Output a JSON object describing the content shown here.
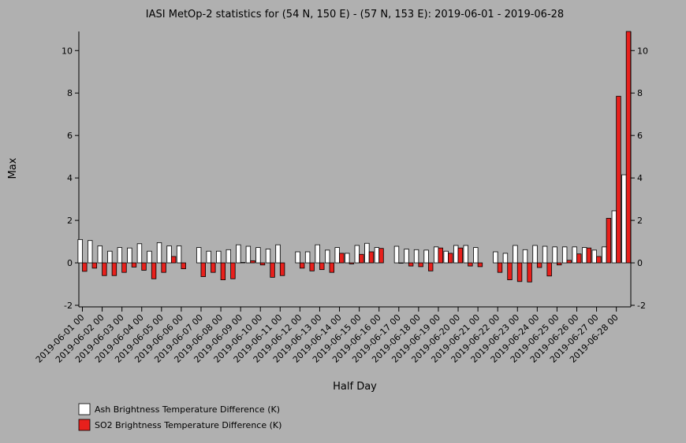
{
  "chart_data": {
    "type": "bar",
    "title": "IASI MetOp-2 statistics for (54 N, 150 E) - (57 N, 153 E): 2019-06-01 - 2019-06-28",
    "x_label": "Half Day",
    "y_label": "Max",
    "categories": [
      "2019-06-01 00",
      null,
      "2019-06-02 00",
      null,
      "2019-06-03 00",
      null,
      "2019-06-04 00",
      null,
      "2019-06-05 00",
      null,
      "2019-06-06 00",
      null,
      "2019-06-07 00",
      null,
      "2019-06-08 00",
      null,
      "2019-06-09 00",
      null,
      "2019-06-10 00",
      null,
      "2019-06-11 00",
      null,
      "2019-06-12 00",
      null,
      "2019-06-13 00",
      null,
      "2019-06-14 00",
      null,
      "2019-06-15 00",
      null,
      "2019-06-16 00",
      null,
      "2019-06-17 00",
      null,
      "2019-06-18 00",
      null,
      "2019-06-19 00",
      null,
      "2019-06-20 00",
      null,
      "2019-06-21 00",
      null,
      "2019-06-22 00",
      null,
      "2019-06-23 00",
      null,
      "2019-06-24 00",
      null,
      "2019-06-25 00",
      null,
      "2019-06-26 00",
      null,
      "2019-06-27 00",
      null,
      "2019-06-28 00",
      null
    ],
    "series": [
      {
        "name": "Ash Brightness Temperature Difference (K)",
        "color": "#ffffff",
        "values": [
          1.1,
          1.05,
          0.8,
          0.55,
          0.72,
          0.7,
          0.9,
          0.55,
          0.95,
          0.8,
          0.8,
          null,
          0.72,
          0.55,
          0.55,
          0.62,
          0.85,
          0.78,
          0.72,
          0.65,
          0.85,
          null,
          0.52,
          0.52,
          0.85,
          0.6,
          0.72,
          0.45,
          0.82,
          0.92,
          0.72,
          null,
          0.78,
          0.65,
          0.62,
          0.6,
          0.75,
          0.55,
          0.82,
          0.82,
          0.72,
          null,
          0.52,
          0.45,
          0.82,
          0.62,
          0.82,
          0.78,
          0.75,
          0.75,
          0.75,
          0.72,
          0.6,
          0.75,
          2.45,
          4.15
        ]
      },
      {
        "name": "SO2 Brightness Temperature Difference (K)",
        "color": "#e8201c",
        "values": [
          -0.4,
          -0.25,
          -0.6,
          -0.6,
          -0.45,
          -0.2,
          -0.35,
          -0.75,
          -0.45,
          0.3,
          -0.28,
          null,
          -0.65,
          -0.45,
          -0.8,
          -0.75,
          0.02,
          0.1,
          -0.1,
          -0.68,
          -0.6,
          null,
          -0.25,
          -0.38,
          -0.32,
          -0.45,
          0.45,
          -0.05,
          0.4,
          0.52,
          0.68,
          null,
          0.0,
          -0.15,
          -0.18,
          -0.38,
          0.7,
          0.45,
          0.7,
          -0.15,
          -0.18,
          null,
          -0.45,
          -0.8,
          -0.88,
          -0.9,
          -0.22,
          -0.62,
          -0.1,
          0.12,
          0.42,
          0.7,
          0.3,
          2.1,
          7.85,
          10.9
        ]
      }
    ],
    "ylim": [
      -2,
      10.9
    ],
    "yticks": [
      -2,
      0,
      2,
      4,
      6,
      8,
      10
    ],
    "grid": false,
    "legend": "bottom-left"
  }
}
